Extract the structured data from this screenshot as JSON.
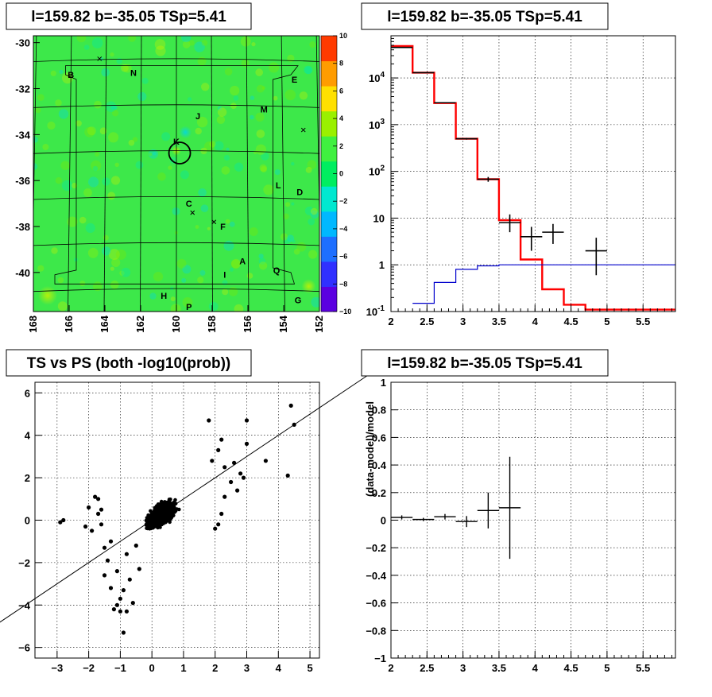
{
  "chart_data": [
    {
      "type": "heatmap",
      "panel": "sky-map",
      "title": "l=159.82 b=-35.05 TSp=5.41",
      "x_ticks": [
        "168",
        "166",
        "164",
        "162",
        "160",
        "158",
        "156",
        "154",
        "152"
      ],
      "y_ticks": [
        "-30",
        "-32",
        "-34",
        "-36",
        "-38",
        "-40"
      ],
      "xlim": [
        168,
        152
      ],
      "ylim": [
        -41.7,
        -29.7
      ],
      "colorbar_ticks": [
        "10",
        "8",
        "6",
        "4",
        "2",
        "0",
        "−2",
        "−4",
        "−6",
        "−8",
        "−10"
      ],
      "colorbar_range": [
        -10,
        10
      ],
      "colorbar_colors": [
        "#5b00e0",
        "#3030ff",
        "#1e6fff",
        "#00b8ff",
        "#00e8d0",
        "#00ee60",
        "#40f040",
        "#9af000",
        "#ffe000",
        "#ff9c00",
        "#ff3a00"
      ],
      "source_letters": [
        {
          "label": "B",
          "lon": 165.9,
          "lat": -31.4
        },
        {
          "label": "N",
          "lon": 162.4,
          "lat": -31.3
        },
        {
          "label": "E",
          "lon": 153.4,
          "lat": -31.6
        },
        {
          "label": "J",
          "lon": 158.8,
          "lat": -33.2
        },
        {
          "label": "M",
          "lon": 155.1,
          "lat": -32.9
        },
        {
          "label": "K",
          "lon": 160.0,
          "lat": -34.3
        },
        {
          "label": "C",
          "lon": 159.3,
          "lat": -37.0
        },
        {
          "label": "L",
          "lon": 154.3,
          "lat": -36.2
        },
        {
          "label": "D",
          "lon": 153.1,
          "lat": -36.5
        },
        {
          "label": "F",
          "lon": 157.4,
          "lat": -38.0
        },
        {
          "label": "A",
          "lon": 156.3,
          "lat": -39.5
        },
        {
          "label": "Q",
          "lon": 154.4,
          "lat": -39.9
        },
        {
          "label": "I",
          "lon": 157.3,
          "lat": -40.1
        },
        {
          "label": "H",
          "lon": 160.7,
          "lat": -41.0
        },
        {
          "label": "G",
          "lon": 153.2,
          "lat": -41.2
        },
        {
          "label": "P",
          "lon": 159.3,
          "lat": -41.5
        }
      ],
      "markers": [
        {
          "lon": 164.3,
          "lat": -30.7
        },
        {
          "lon": 152.9,
          "lat": -33.8
        },
        {
          "lon": 159.1,
          "lat": -37.4
        },
        {
          "lon": 157.9,
          "lat": -37.8
        }
      ],
      "circle": {
        "lon": 159.82,
        "lat": -34.8,
        "radius_deg": 0.6
      }
    },
    {
      "type": "line",
      "panel": "spectrum",
      "title": "l=159.82 b=-35.05 TSp=5.41",
      "x_ticks": [
        "2",
        "2.5",
        "3",
        "3.5",
        "4",
        "4.5",
        "5",
        "5.5"
      ],
      "y_ticks": [
        "10^-1",
        "1",
        "10",
        "10^2",
        "10^3",
        "10^4"
      ],
      "xlim": [
        2,
        5.95
      ],
      "ylim": [
        0.1,
        80000
      ],
      "log_y": true,
      "series": [
        {
          "color": "#ff0000",
          "step_edges": [
            2.0,
            2.3,
            2.6,
            2.9,
            3.2,
            3.5,
            3.8,
            4.1,
            4.4,
            4.7,
            5.0,
            5.95
          ],
          "values": [
            48000,
            13000,
            2900,
            500,
            68,
            9,
            1.3,
            0.3,
            0.14,
            0.11,
            0.11
          ]
        },
        {
          "color": "#0000cc",
          "step_edges": [
            2.3,
            2.6,
            2.9,
            3.2,
            3.5,
            3.8,
            5.95
          ],
          "values": [
            0.15,
            0.42,
            0.8,
            0.95,
            1.0,
            1.0
          ]
        },
        {
          "color": "#000000",
          "points": [
            {
              "x": 2.15,
              "y": 45000,
              "xerr": 0.15,
              "ylo": 44000,
              "yhi": 46000
            },
            {
              "x": 2.45,
              "y": 13000,
              "xerr": 0.15,
              "ylo": 12800,
              "yhi": 13200
            },
            {
              "x": 2.75,
              "y": 2950,
              "xerr": 0.15,
              "ylo": 2900,
              "yhi": 3000
            },
            {
              "x": 3.05,
              "y": 500,
              "xerr": 0.15,
              "ylo": 480,
              "yhi": 520
            },
            {
              "x": 3.35,
              "y": 68,
              "xerr": 0.15,
              "ylo": 60,
              "yhi": 76
            },
            {
              "x": 3.65,
              "y": 8,
              "xerr": 0.15,
              "ylo": 5,
              "yhi": 12
            },
            {
              "x": 3.95,
              "y": 4,
              "xerr": 0.15,
              "ylo": 2,
              "yhi": 6.5
            },
            {
              "x": 4.25,
              "y": 5,
              "xerr": 0.15,
              "ylo": 2.8,
              "yhi": 7.5
            },
            {
              "x": 4.85,
              "y": 2,
              "xerr": 0.15,
              "ylo": 0.6,
              "yhi": 3.8
            }
          ]
        }
      ]
    },
    {
      "type": "scatter",
      "panel": "ts-vs-ps",
      "title": "TS vs PS (both -log10(prob))",
      "x_ticks": [
        "−3",
        "−2",
        "−1",
        "0",
        "1",
        "2",
        "3",
        "4",
        "5"
      ],
      "y_ticks": [
        "−6",
        "−4",
        "−2",
        "0",
        "2",
        "4",
        "6"
      ],
      "xlim": [
        -3.7,
        5.3
      ],
      "ylim": [
        -6.5,
        6.5
      ],
      "reference_line": {
        "slope": 1,
        "intercept": 0
      },
      "points": [
        [
          -2.9,
          -0.1
        ],
        [
          -2.8,
          0.0
        ],
        [
          -2.1,
          -0.3
        ],
        [
          -2.0,
          0.6
        ],
        [
          -1.9,
          -0.5
        ],
        [
          -1.8,
          1.1
        ],
        [
          -1.7,
          1.0
        ],
        [
          -1.6,
          -0.2
        ],
        [
          -1.5,
          -1.3
        ],
        [
          -1.5,
          -2.6
        ],
        [
          -1.4,
          -1.9
        ],
        [
          -1.3,
          -3.2
        ],
        [
          -1.3,
          -1.0
        ],
        [
          -1.2,
          -4.2
        ],
        [
          -1.1,
          -4.0
        ],
        [
          -1.1,
          -2.4
        ],
        [
          -1.0,
          -3.7
        ],
        [
          -1.0,
          -4.3
        ],
        [
          -0.9,
          -5.3
        ],
        [
          -0.9,
          -3.3
        ],
        [
          -0.8,
          -4.3
        ],
        [
          -0.8,
          -1.6
        ],
        [
          -0.7,
          -2.8
        ],
        [
          -0.6,
          -3.9
        ],
        [
          -0.5,
          -1.2
        ],
        [
          -0.4,
          -2.3
        ],
        [
          -1.7,
          0.3
        ],
        [
          -1.6,
          0.5
        ],
        [
          1.8,
          4.7
        ],
        [
          2.2,
          3.8
        ],
        [
          2.6,
          2.7
        ],
        [
          2.8,
          2.2
        ],
        [
          3.0,
          4.7
        ],
        [
          3.0,
          3.6
        ],
        [
          2.5,
          1.8
        ],
        [
          2.9,
          2.0
        ],
        [
          3.6,
          2.8
        ],
        [
          4.3,
          2.1
        ],
        [
          4.4,
          5.4
        ],
        [
          4.5,
          4.5
        ],
        [
          2.1,
          3.3
        ],
        [
          2.3,
          2.5
        ],
        [
          1.9,
          2.8
        ],
        [
          2.7,
          1.4
        ],
        [
          2.2,
          0.3
        ],
        [
          2.1,
          -0.2
        ],
        [
          2.3,
          1.1
        ],
        [
          2.0,
          -0.4
        ]
      ],
      "blob": {
        "x_range": [
          -1.4,
          2.3
        ],
        "y_range": [
          -2.5,
          3.1
        ]
      }
    },
    {
      "type": "scatter",
      "panel": "residuals",
      "title": "l=159.82 b=-35.05 TSp=5.41",
      "ylabel": "(data-model)/model",
      "x_ticks": [
        "2",
        "2.5",
        "3",
        "3.5",
        "4",
        "4.5",
        "5",
        "5.5"
      ],
      "y_ticks": [
        "−1",
        "−0.8",
        "−0.6",
        "−0.4",
        "−0.2",
        "0",
        "0.2",
        "0.4",
        "0.6",
        "0.8",
        "1"
      ],
      "xlim": [
        2,
        5.95
      ],
      "ylim": [
        -1,
        1
      ],
      "points": [
        {
          "x": 2.15,
          "y": 0.02,
          "xerr": 0.15,
          "yerr": 0.015
        },
        {
          "x": 2.45,
          "y": 0.005,
          "xerr": 0.15,
          "yerr": 0.012
        },
        {
          "x": 2.75,
          "y": 0.025,
          "xerr": 0.15,
          "yerr": 0.02
        },
        {
          "x": 3.05,
          "y": -0.01,
          "xerr": 0.15,
          "yerr": 0.04
        },
        {
          "x": 3.35,
          "y": 0.07,
          "xerr": 0.15,
          "yerr": 0.13
        },
        {
          "x": 3.65,
          "y": 0.09,
          "xerr": 0.15,
          "yerr": 0.37
        }
      ]
    }
  ]
}
